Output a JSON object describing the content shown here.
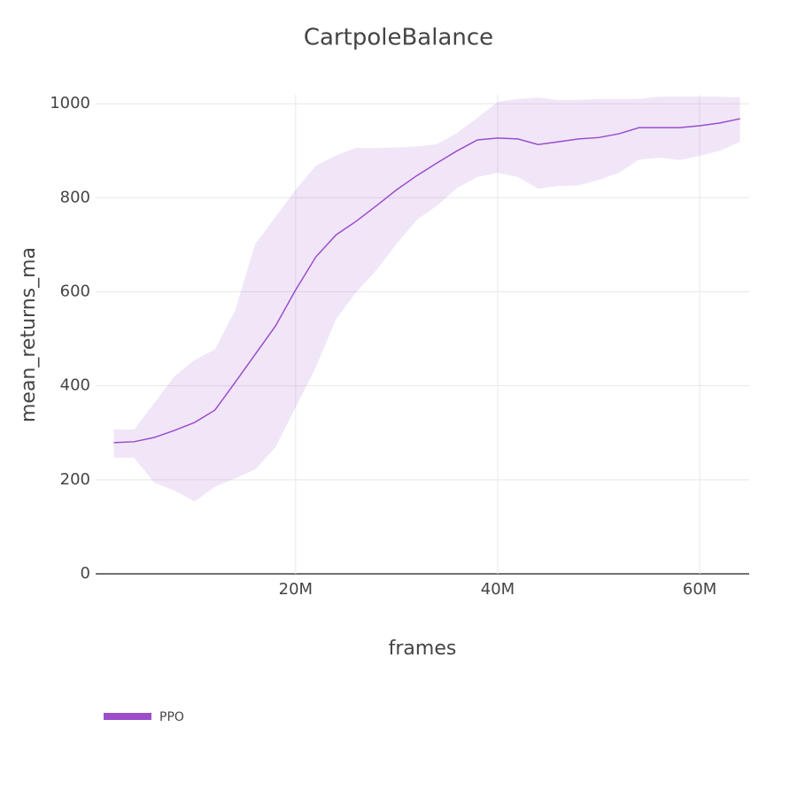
{
  "chart_data": {
    "type": "line",
    "title": "CartpoleBalance",
    "x_label": "frames",
    "y_label": "mean_returns_ma",
    "x": [
      2000000,
      4000000,
      6000000,
      8000000,
      10000000,
      12000000,
      14000000,
      16000000,
      18000000,
      20000000,
      22000000,
      24000000,
      26000000,
      28000000,
      30000000,
      32000000,
      34000000,
      36000000,
      38000000,
      40000000,
      42000000,
      44000000,
      46000000,
      48000000,
      50000000,
      52000000,
      54000000,
      56000000,
      58000000,
      60000000,
      62000000,
      64000000
    ],
    "series": [
      {
        "name": "PPO",
        "color": "#9b4dca",
        "band_color": "rgba(155,77,202,0.14)",
        "values": [
          279,
          281,
          290,
          305,
          322,
          348,
          407,
          467,
          527,
          604,
          674,
          721,
          750,
          783,
          817,
          847,
          874,
          900,
          923,
          927,
          925,
          913,
          919,
          925,
          928,
          936,
          949,
          949,
          949,
          953,
          959,
          968
        ],
        "upper": [
          307,
          307,
          363,
          420,
          455,
          477,
          560,
          702,
          759,
          817,
          868,
          890,
          906,
          906,
          907,
          909,
          914,
          938,
          970,
          1004,
          1010,
          1013,
          1008,
          1008,
          1010,
          1010,
          1010,
          1015,
          1015,
          1015,
          1015,
          1013
        ],
        "lower": [
          247,
          247,
          194,
          177,
          154,
          185,
          203,
          222,
          269,
          354,
          439,
          542,
          599,
          646,
          702,
          753,
          783,
          821,
          844,
          853,
          844,
          819,
          825,
          826,
          838,
          853,
          881,
          885,
          880,
          889,
          900,
          919
        ]
      }
    ],
    "xlim": [
      200000,
      64900000
    ],
    "ylim": [
      0,
      1019
    ],
    "xticks": [
      {
        "value": 20000000,
        "label": "20M"
      },
      {
        "value": 40000000,
        "label": "40M"
      },
      {
        "value": 60000000,
        "label": "60M"
      }
    ],
    "yticks": [
      0,
      200,
      400,
      600,
      800,
      1000
    ],
    "grid": true
  }
}
